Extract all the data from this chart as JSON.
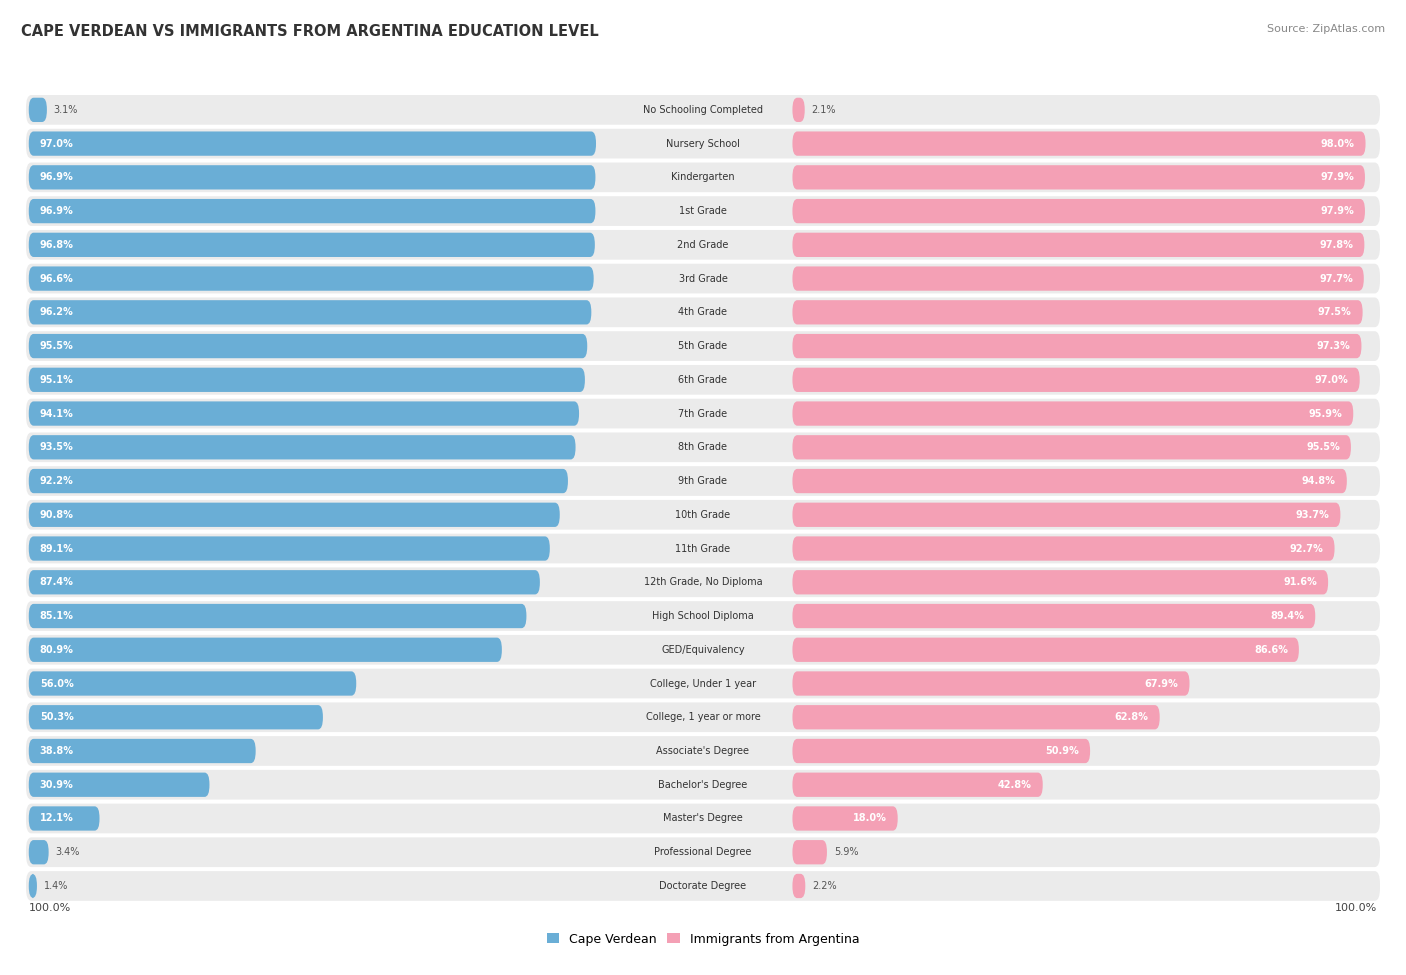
{
  "title": "CAPE VERDEAN VS IMMIGRANTS FROM ARGENTINA EDUCATION LEVEL",
  "source": "Source: ZipAtlas.com",
  "categories": [
    "No Schooling Completed",
    "Nursery School",
    "Kindergarten",
    "1st Grade",
    "2nd Grade",
    "3rd Grade",
    "4th Grade",
    "5th Grade",
    "6th Grade",
    "7th Grade",
    "8th Grade",
    "9th Grade",
    "10th Grade",
    "11th Grade",
    "12th Grade, No Diploma",
    "High School Diploma",
    "GED/Equivalency",
    "College, Under 1 year",
    "College, 1 year or more",
    "Associate's Degree",
    "Bachelor's Degree",
    "Master's Degree",
    "Professional Degree",
    "Doctorate Degree"
  ],
  "cape_verdean": [
    3.1,
    97.0,
    96.9,
    96.9,
    96.8,
    96.6,
    96.2,
    95.5,
    95.1,
    94.1,
    93.5,
    92.2,
    90.8,
    89.1,
    87.4,
    85.1,
    80.9,
    56.0,
    50.3,
    38.8,
    30.9,
    12.1,
    3.4,
    1.4
  ],
  "argentina": [
    2.1,
    98.0,
    97.9,
    97.9,
    97.8,
    97.7,
    97.5,
    97.3,
    97.0,
    95.9,
    95.5,
    94.8,
    93.7,
    92.7,
    91.6,
    89.4,
    86.6,
    67.9,
    62.8,
    50.9,
    42.8,
    18.0,
    5.9,
    2.2
  ],
  "cape_verdean_color": "#6aaed6",
  "argentina_color": "#f4a0b5",
  "row_bg_color": "#ebebeb",
  "legend_cape_verdean": "Cape Verdean",
  "legend_argentina": "Immigrants from Argentina",
  "left_footer": "100.0%",
  "right_footer": "100.0%"
}
